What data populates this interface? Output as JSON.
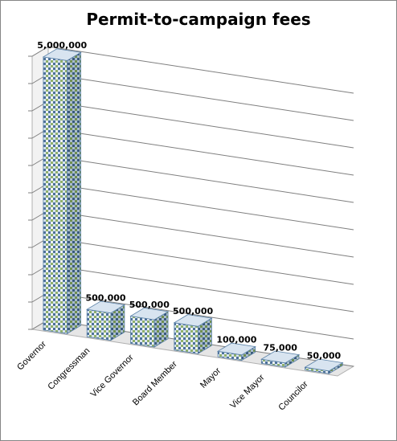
{
  "chart_data": {
    "type": "bar",
    "title": "Permit-to-campaign fees",
    "categories": [
      "Governor",
      "Congressman",
      "Vice Governor",
      "Board Member",
      "Mayor",
      "Vice Mayor",
      "Councilor"
    ],
    "values": [
      5000000,
      500000,
      500000,
      500000,
      100000,
      75000,
      50000
    ],
    "data_labels": [
      "5,000,000",
      "500,000",
      "500,000",
      "500,000",
      "100,000",
      "75,000",
      "50,000"
    ],
    "xlabel": "",
    "ylabel": "",
    "ylim": [
      0,
      5000000
    ],
    "grid": true,
    "legend": "none",
    "style": "3d-stacked-picture-bars"
  },
  "colors": {
    "wall": "#f2f2f2",
    "floor": "#e6e6e6",
    "grid": "#7f7f7f",
    "bar_blue": "#5b82a8",
    "bar_light": "#d8e4f0",
    "bar_green": "#8fb06c"
  }
}
